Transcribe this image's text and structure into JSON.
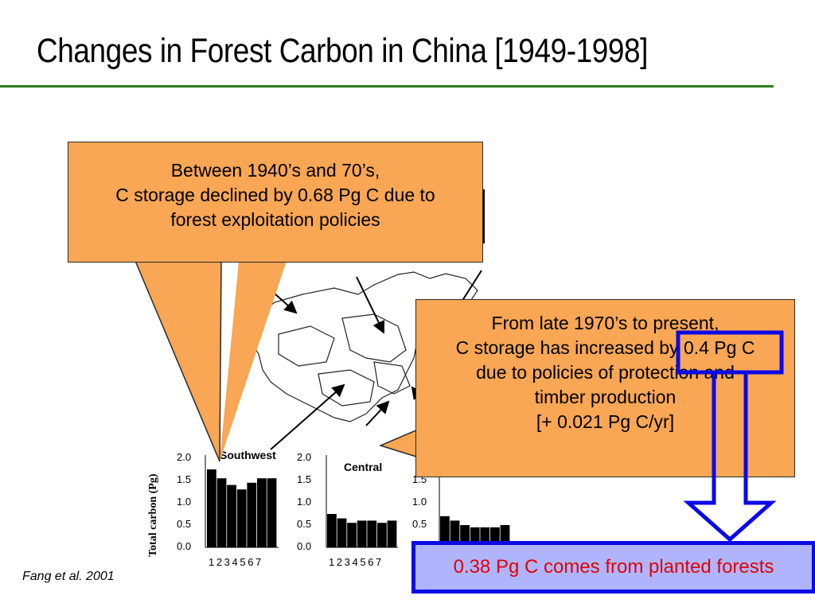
{
  "slide": {
    "title": "Changes in Forest Carbon in China [1949-1998]",
    "citation": "Fang et al. 2001"
  },
  "callouts": {
    "decline": [
      "Between 1940’s and 70’s,",
      "C storage declined by 0.68 Pg C due to",
      "forest exploitation policies"
    ],
    "increase": [
      "From late 1970’s to present,",
      "C storage has increased by 0.4 Pg C",
      "due to policies of protection and",
      "timber production",
      "[+ 0.021 Pg C/yr]"
    ],
    "result": "0.38 Pg C comes from planted forests"
  },
  "figure": {
    "ylabel": "Total carbon (Pg)",
    "yticks": [
      "2.0",
      "1.5",
      "1.0",
      "0.5",
      "0.0"
    ],
    "xticks": "1 2 3 4 5 6 7",
    "panels": [
      {
        "name": "Southwest",
        "values": [
          1.75,
          1.55,
          1.4,
          1.3,
          1.45,
          1.55,
          1.55
        ]
      },
      {
        "name": "Central",
        "values": [
          0.75,
          0.65,
          0.55,
          0.6,
          0.6,
          0.55,
          0.6
        ]
      },
      {
        "name": "",
        "values": [
          0.7,
          0.6,
          0.5,
          0.45,
          0.45,
          0.45,
          0.5
        ]
      }
    ],
    "ylim": [
      0,
      2.0
    ]
  },
  "colors": {
    "callout_fill": "#f9a655",
    "result_border": "#0a0ae6",
    "result_fill": "#b0b4ff",
    "result_text": "#e00000",
    "title_rule": "#2e7d1e"
  }
}
